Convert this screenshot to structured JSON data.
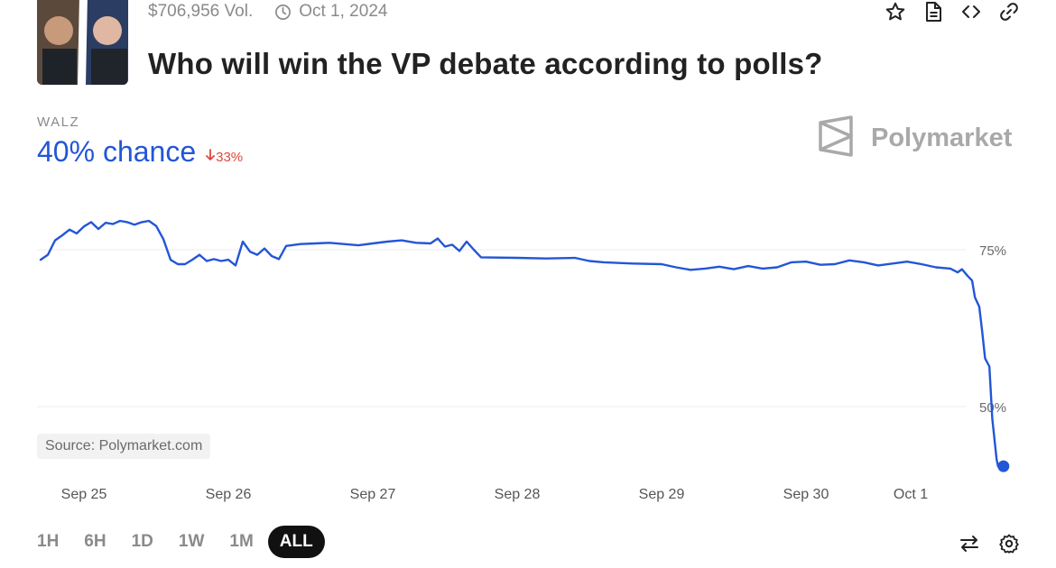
{
  "header": {
    "volume": "$706,956 Vol.",
    "date": "Oct 1, 2024",
    "title": "Who will win the VP debate according to polls?"
  },
  "outcome": {
    "label": "WALZ",
    "chance": "40% chance",
    "delta": "33%"
  },
  "brand": {
    "name": "Polymarket"
  },
  "source": "Source: Polymarket.com",
  "ranges": [
    "1H",
    "6H",
    "1D",
    "1W",
    "1M",
    "ALL"
  ],
  "icons": [
    "star-icon",
    "document-icon",
    "embed-icon",
    "link-icon",
    "swap-icon",
    "gear-icon",
    "clock-icon",
    "arrow-down-icon",
    "polymarket-logo"
  ],
  "colors": {
    "line": "#2356d6",
    "delta": "#e0463c",
    "grid": "#ececec"
  },
  "chart_data": {
    "type": "line",
    "title": "",
    "xlabel": "",
    "ylabel": "",
    "x_ticks": [
      "Sep 25",
      "Sep 26",
      "Sep 27",
      "Sep 28",
      "Sep 29",
      "Sep 30",
      "Oct 1"
    ],
    "y_ticks": [
      "75%",
      "50%"
    ],
    "y_tick_values": [
      75,
      50
    ],
    "xlim": [
      0,
      6.5
    ],
    "ylim": [
      40,
      82
    ],
    "grid": true,
    "series": [
      {
        "values": [
          [
            -0.3,
            73.4
          ],
          [
            -0.25,
            74.2
          ],
          [
            -0.2,
            76.5
          ],
          [
            -0.15,
            77.3
          ],
          [
            -0.1,
            78.2
          ],
          [
            -0.05,
            77.6
          ],
          [
            0.0,
            78.7
          ],
          [
            0.05,
            79.4
          ],
          [
            0.1,
            78.3
          ],
          [
            0.15,
            79.3
          ],
          [
            0.2,
            79.1
          ],
          [
            0.25,
            79.6
          ],
          [
            0.3,
            79.4
          ],
          [
            0.35,
            79.0
          ],
          [
            0.4,
            79.4
          ],
          [
            0.45,
            79.6
          ],
          [
            0.5,
            78.8
          ],
          [
            0.55,
            76.7
          ],
          [
            0.6,
            73.4
          ],
          [
            0.65,
            72.7
          ],
          [
            0.7,
            72.7
          ],
          [
            0.75,
            73.4
          ],
          [
            0.8,
            74.2
          ],
          [
            0.85,
            73.2
          ],
          [
            0.9,
            73.5
          ],
          [
            0.95,
            73.2
          ],
          [
            1.0,
            73.4
          ],
          [
            1.05,
            72.5
          ],
          [
            1.1,
            76.3
          ],
          [
            1.15,
            74.7
          ],
          [
            1.2,
            74.2
          ],
          [
            1.25,
            75.2
          ],
          [
            1.3,
            74.0
          ],
          [
            1.35,
            73.5
          ],
          [
            1.4,
            75.6
          ],
          [
            1.5,
            75.9
          ],
          [
            1.6,
            76.0
          ],
          [
            1.7,
            76.1
          ],
          [
            1.8,
            75.9
          ],
          [
            1.9,
            75.7
          ],
          [
            2.0,
            76.0
          ],
          [
            2.1,
            76.3
          ],
          [
            2.2,
            76.5
          ],
          [
            2.3,
            76.1
          ],
          [
            2.4,
            76.0
          ],
          [
            2.45,
            76.8
          ],
          [
            2.5,
            75.5
          ],
          [
            2.55,
            75.8
          ],
          [
            2.6,
            74.8
          ],
          [
            2.65,
            76.3
          ],
          [
            2.7,
            75.0
          ],
          [
            2.75,
            73.8
          ],
          [
            3.0,
            73.7
          ],
          [
            3.2,
            73.6
          ],
          [
            3.4,
            73.7
          ],
          [
            3.5,
            73.2
          ],
          [
            3.6,
            73.0
          ],
          [
            3.8,
            72.8
          ],
          [
            4.0,
            72.7
          ],
          [
            4.1,
            72.2
          ],
          [
            4.2,
            71.8
          ],
          [
            4.3,
            72.0
          ],
          [
            4.4,
            72.3
          ],
          [
            4.5,
            71.9
          ],
          [
            4.6,
            72.4
          ],
          [
            4.7,
            72.0
          ],
          [
            4.8,
            72.2
          ],
          [
            4.9,
            73.0
          ],
          [
            5.0,
            73.1
          ],
          [
            5.1,
            72.6
          ],
          [
            5.2,
            72.7
          ],
          [
            5.3,
            73.3
          ],
          [
            5.4,
            73.0
          ],
          [
            5.5,
            72.5
          ],
          [
            5.6,
            72.8
          ],
          [
            5.7,
            73.1
          ],
          [
            5.8,
            72.7
          ],
          [
            5.9,
            72.2
          ],
          [
            6.0,
            72.0
          ],
          [
            6.05,
            71.4
          ],
          [
            6.08,
            71.9
          ],
          [
            6.12,
            70.8
          ],
          [
            6.15,
            70.1
          ],
          [
            6.17,
            67.4
          ],
          [
            6.2,
            65.9
          ],
          [
            6.22,
            62.0
          ],
          [
            6.24,
            57.7
          ],
          [
            6.27,
            56.4
          ],
          [
            6.29,
            48.1
          ],
          [
            6.32,
            41.6
          ],
          [
            6.33,
            40.5
          ]
        ]
      }
    ]
  }
}
